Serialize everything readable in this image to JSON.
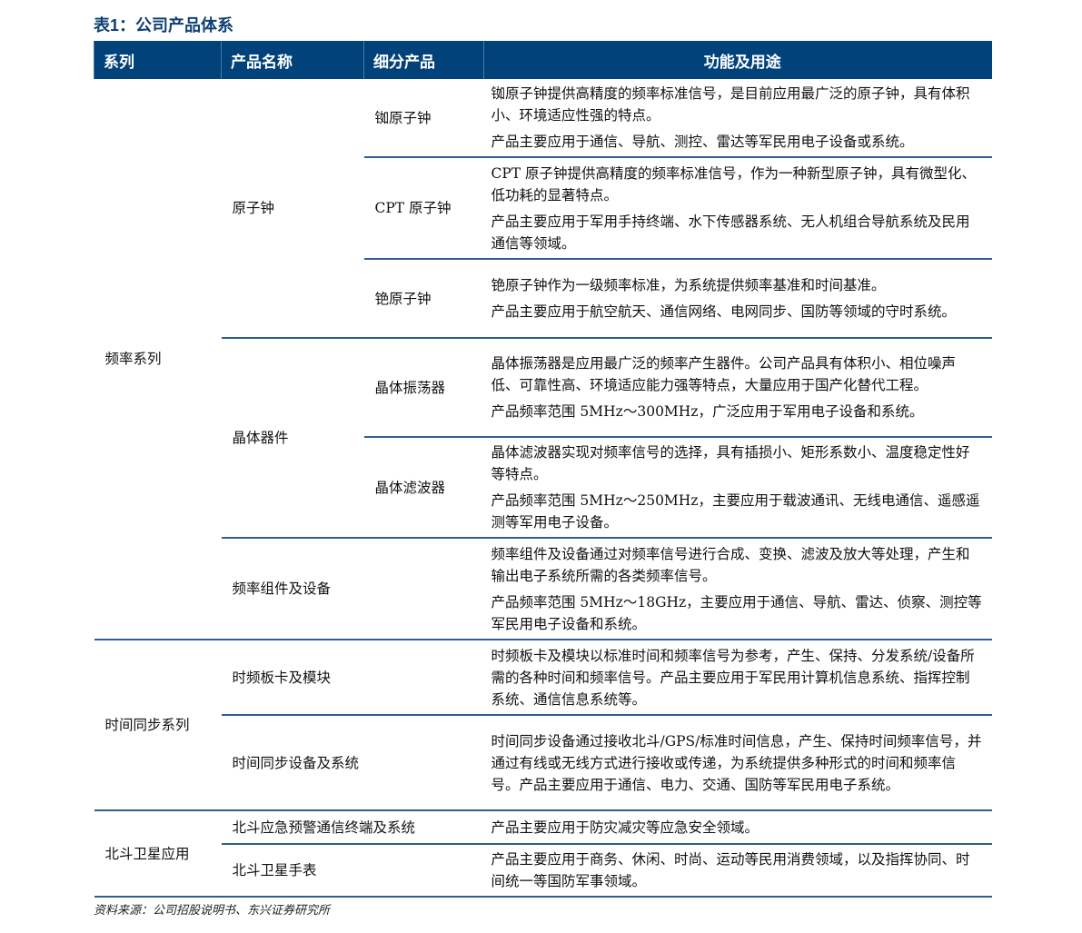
{
  "title": "表1：公司产品体系",
  "headers": [
    "系列",
    "产品名称",
    "细分产品",
    "功能及用途"
  ],
  "rows": [
    {
      "series": "频率系列",
      "product": "原子钟",
      "sub": "铷原子钟",
      "desc": [
        "铷原子钟提供高精度的频率标准信号，是目前应用最广泛的原子钟，具有体积小、环境适应性强的特点。",
        "产品主要应用于通信、导航、测控、雷达等军民用电子设备或系统。"
      ]
    },
    {
      "sub": "CPT 原子钟",
      "desc": [
        "CPT 原子钟提供高精度的频率标准信号，作为一种新型原子钟，具有微型化、低功耗的显著特点。",
        "产品主要应用于军用手持终端、水下传感器系统、无人机组合导航系统及民用通信等领域。"
      ]
    },
    {
      "sub": "铯原子钟",
      "desc": [
        "铯原子钟作为一级频率标准，为系统提供频率基准和时间基准。",
        "产品主要应用于航空航天、通信网络、电网同步、国防等领域的守时系统。"
      ]
    },
    {
      "product": "晶体器件",
      "sub": "晶体振荡器",
      "desc": [
        "晶体振荡器是应用最广泛的频率产生器件。公司产品具有体积小、相位噪声低、可靠性高、环境适应能力强等特点，大量应用于国产化替代工程。",
        "产品频率范围 5MHz～300MHz，广泛应用于军用电子设备和系统。"
      ]
    },
    {
      "sub": "晶体滤波器",
      "desc": [
        "晶体滤波器实现对频率信号的选择，具有插损小、矩形系数小、温度稳定性好等特点。",
        "产品频率范围 5MHz～250MHz，主要应用于载波通讯、无线电通信、遥感遥测等军用电子设备。"
      ]
    },
    {
      "product": "频率组件及设备",
      "desc": [
        "频率组件及设备通过对频率信号进行合成、变换、滤波及放大等处理，产生和输出电子系统所需的各类频率信号。",
        "产品频率范围 5MHz～18GHz，主要应用于通信、导航、雷达、侦察、测控等军民用电子设备和系统。"
      ]
    },
    {
      "series": "时间同步系列",
      "product": "时频板卡及模块",
      "desc": [
        "时频板卡及模块以标准时间和频率信号为参考，产生、保持、分发系统/设备所需的各种时间和频率信号。产品主要应用于军民用计算机信息系统、指挥控制系统、通信信息系统等。"
      ]
    },
    {
      "product": "时间同步设备及系统",
      "desc": [
        "时间同步设备通过接收北斗/GPS/标准时间信息，产生、保持时间频率信号，并通过有线或无线方式进行接收或传递，为系统提供多种形式的时间和频率信号。产品主要应用于通信、电力、交通、国防等军民用电子系统。"
      ]
    },
    {
      "series": "北斗卫星应用",
      "product": "北斗应急预警通信终端及系统",
      "desc": [
        "产品主要应用于防灾减灾等应急安全领域。"
      ]
    },
    {
      "product": "北斗卫星手表",
      "desc": [
        "产品主要应用于商务、休闲、时尚、运动等民用消费领域，以及指挥协同、时间统一等国防军事领域。"
      ]
    }
  ],
  "source": "资料来源：公司招股说明书、东兴证券研究所"
}
